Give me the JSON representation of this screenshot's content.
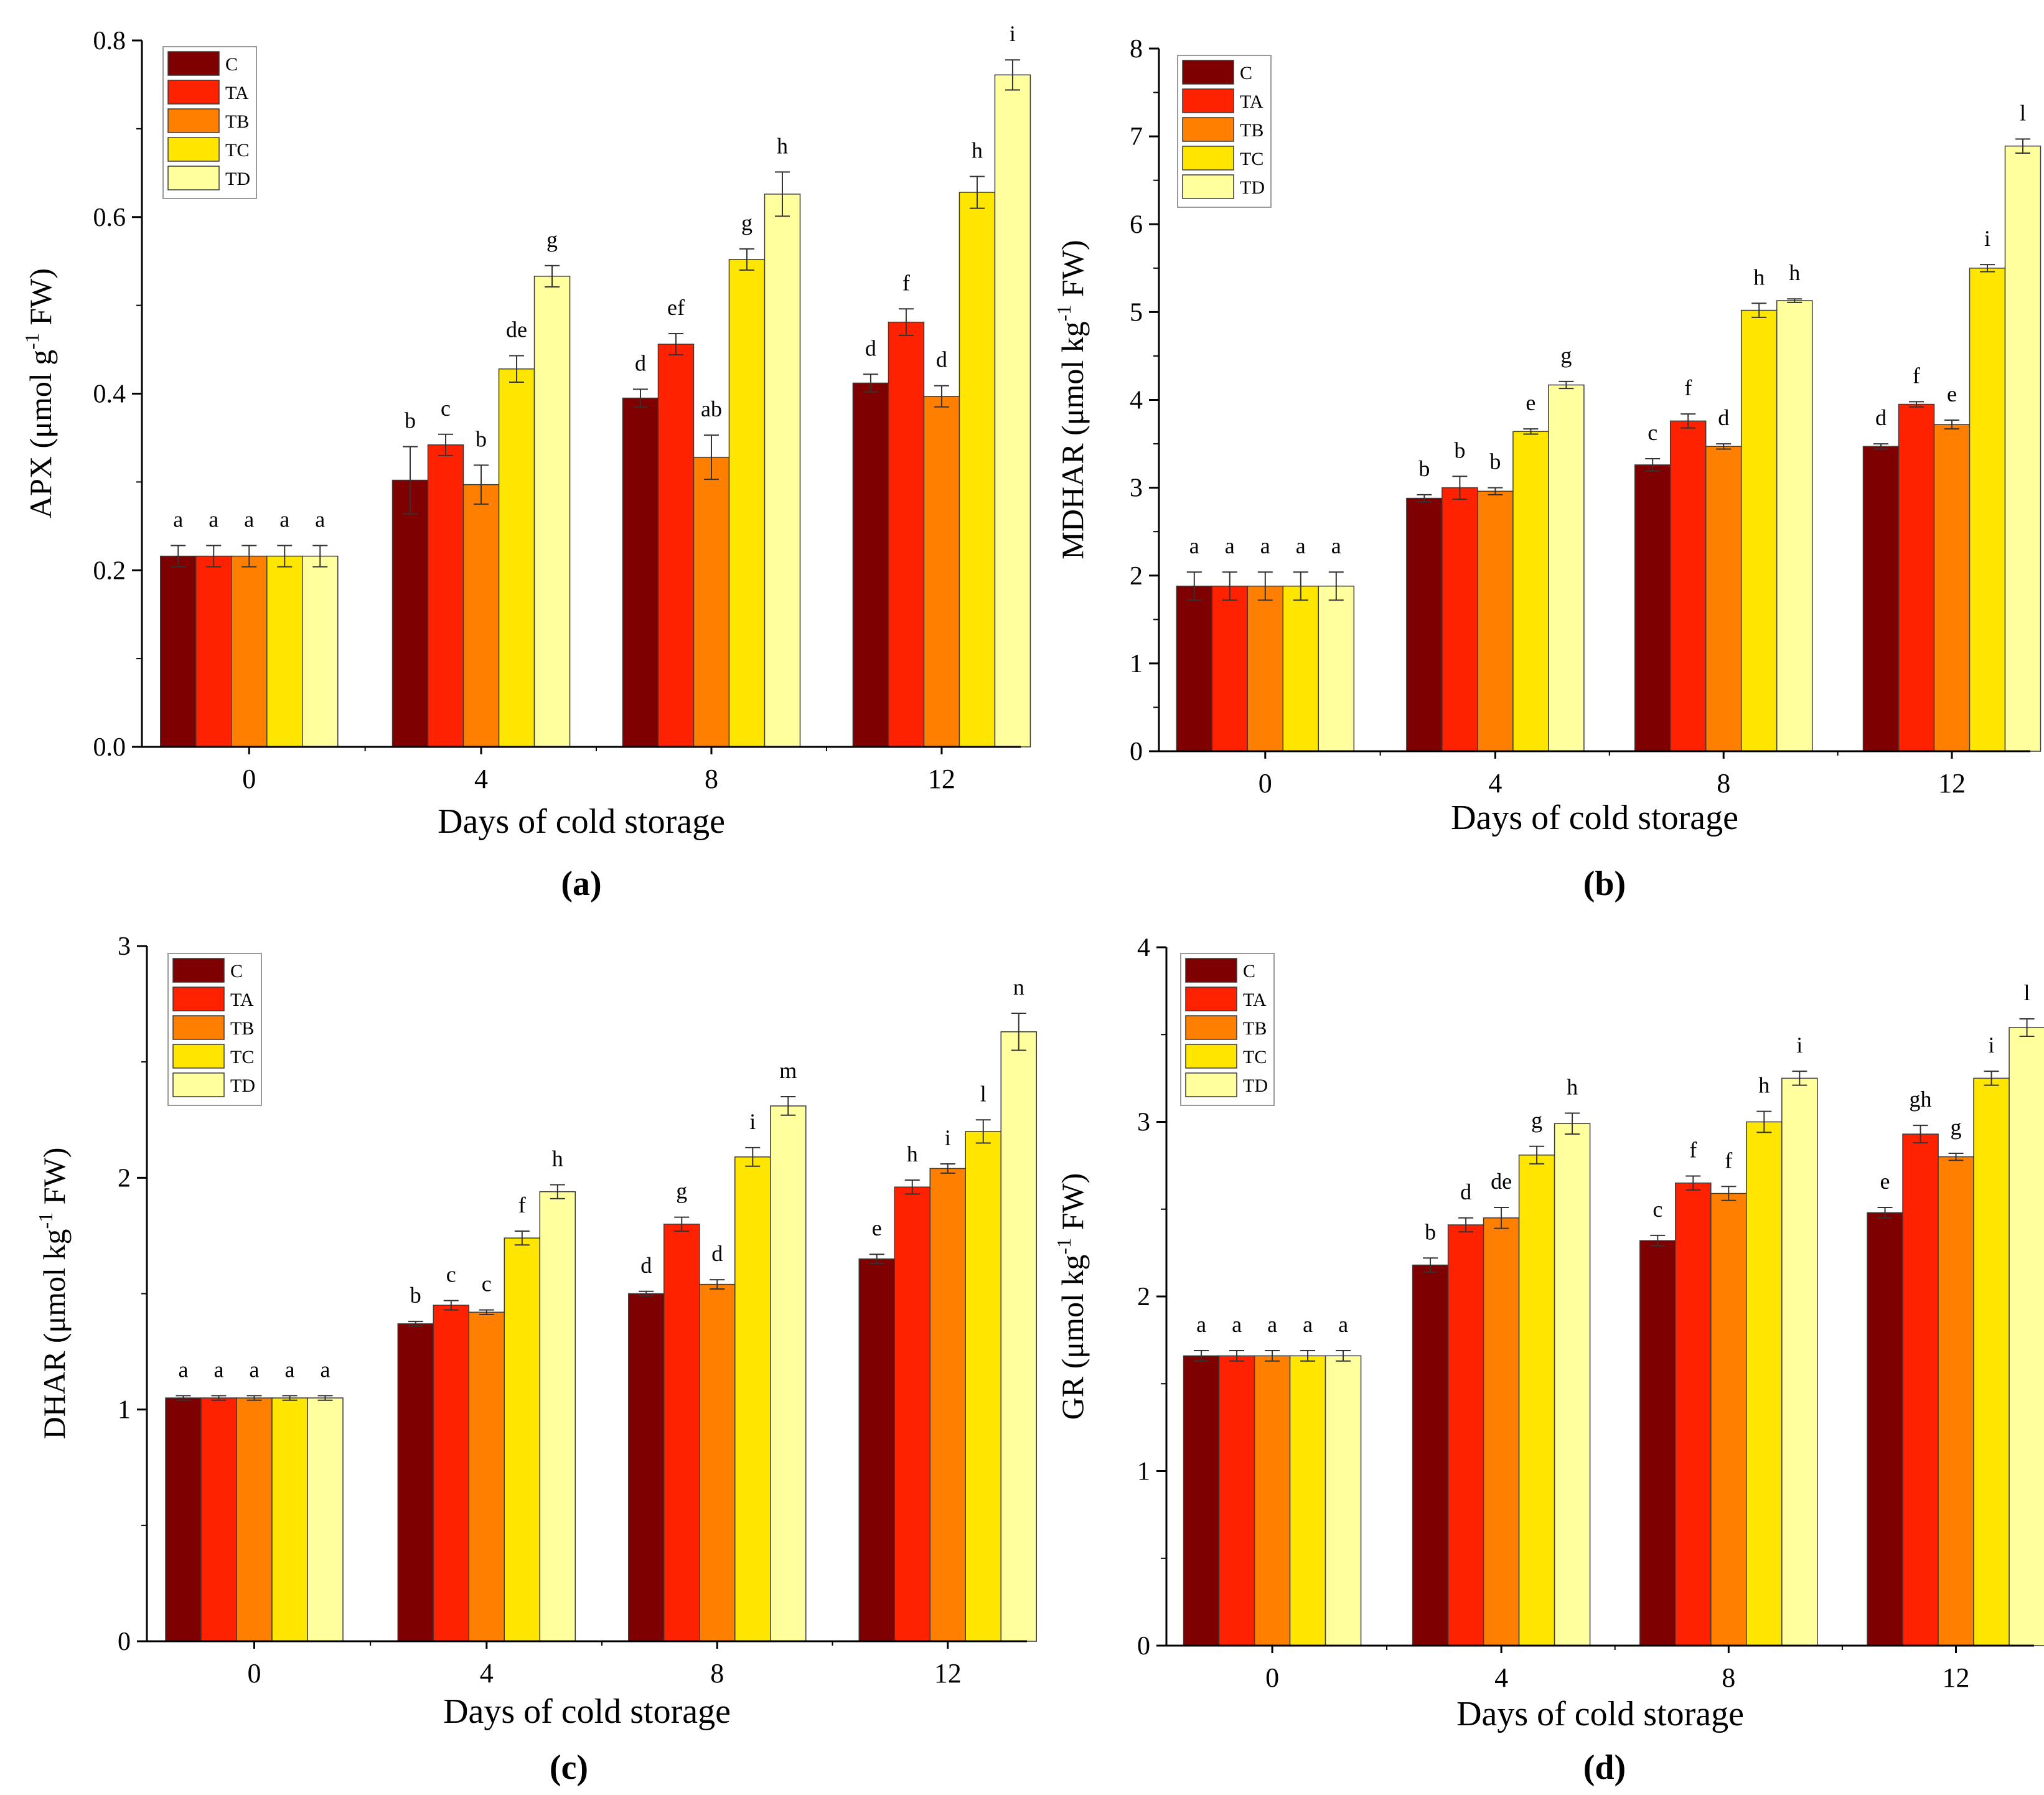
{
  "legend_labels": [
    "C",
    "TA",
    "TB",
    "TC",
    "TD"
  ],
  "colors": {
    "C": "#7f0000",
    "TA": "#ff2200",
    "TB": "#ff8000",
    "TC": "#ffe600",
    "TD": "#ffff9e",
    "stroke": "#3a3a3a"
  },
  "chart_data": [
    {
      "type": "bar",
      "panel": "(a)",
      "xlabel": "Days of cold storage",
      "ylabel_main": "APX (μmol g",
      "ylabel_sup": "-1",
      "ylabel_end": " FW)",
      "categories": [
        "0",
        "4",
        "8",
        "12"
      ],
      "ylim": [
        0,
        0.8
      ],
      "yticks": [
        0.0,
        0.2,
        0.4,
        0.6,
        0.8
      ],
      "ytick_labels": [
        "0.0",
        "0.2",
        "0.4",
        "0.6",
        "0.8"
      ],
      "series": [
        {
          "name": "C",
          "values": [
            0.216,
            0.302,
            0.395,
            0.412
          ],
          "errors": [
            0.012,
            0.038,
            0.01,
            0.01
          ],
          "letters": [
            "a",
            "b",
            "d",
            "d"
          ]
        },
        {
          "name": "TA",
          "values": [
            0.216,
            0.342,
            0.456,
            0.481
          ],
          "errors": [
            0.012,
            0.012,
            0.012,
            0.015
          ],
          "letters": [
            "a",
            "c",
            "ef",
            "f"
          ]
        },
        {
          "name": "TB",
          "values": [
            0.216,
            0.297,
            0.328,
            0.397
          ],
          "errors": [
            0.012,
            0.022,
            0.025,
            0.012
          ],
          "letters": [
            "a",
            "b",
            "ab",
            "d"
          ]
        },
        {
          "name": "TC",
          "values": [
            0.216,
            0.428,
            0.552,
            0.628
          ],
          "errors": [
            0.012,
            0.015,
            0.012,
            0.018
          ],
          "letters": [
            "a",
            "de",
            "g",
            "h"
          ]
        },
        {
          "name": "TD",
          "values": [
            0.216,
            0.533,
            0.626,
            0.761
          ],
          "errors": [
            0.012,
            0.012,
            0.025,
            0.017
          ],
          "letters": [
            "a",
            "g",
            "h",
            "i"
          ]
        }
      ]
    },
    {
      "type": "bar",
      "panel": "(b)",
      "xlabel": "Days of cold storage",
      "ylabel_main": "MDHAR (μmol kg",
      "ylabel_sup": "-1",
      "ylabel_end": " FW)",
      "categories": [
        "0",
        "4",
        "8",
        "12"
      ],
      "ylim": [
        0,
        8
      ],
      "yticks": [
        0,
        1,
        2,
        3,
        4,
        5,
        6,
        7,
        8
      ],
      "ytick_labels": [
        "0",
        "1",
        "2",
        "3",
        "4",
        "5",
        "6",
        "7",
        "8"
      ],
      "series": [
        {
          "name": "C",
          "values": [
            1.88,
            2.88,
            3.26,
            3.47
          ],
          "errors": [
            0.16,
            0.04,
            0.07,
            0.03
          ],
          "letters": [
            "a",
            "b",
            "c",
            "d"
          ]
        },
        {
          "name": "TA",
          "values": [
            1.88,
            3.0,
            3.76,
            3.95
          ],
          "errors": [
            0.16,
            0.13,
            0.08,
            0.03
          ],
          "letters": [
            "a",
            "b",
            "f",
            "f"
          ]
        },
        {
          "name": "TB",
          "values": [
            1.88,
            2.96,
            3.47,
            3.72
          ],
          "errors": [
            0.16,
            0.04,
            0.03,
            0.05
          ],
          "letters": [
            "a",
            "b",
            "d",
            "e"
          ]
        },
        {
          "name": "TC",
          "values": [
            1.88,
            3.64,
            5.02,
            5.5
          ],
          "errors": [
            0.16,
            0.03,
            0.08,
            0.04
          ],
          "letters": [
            "a",
            "e",
            "h",
            "i"
          ]
        },
        {
          "name": "TD",
          "values": [
            1.88,
            4.17,
            5.13,
            6.89
          ],
          "errors": [
            0.16,
            0.04,
            0.02,
            0.08
          ],
          "letters": [
            "a",
            "g",
            "h",
            "l"
          ]
        }
      ]
    },
    {
      "type": "bar",
      "panel": "(c)",
      "xlabel": "Days of cold storage",
      "ylabel_main": "DHAR (μmol kg",
      "ylabel_sup": "-1",
      "ylabel_end": " FW)",
      "categories": [
        "0",
        "4",
        "8",
        "12"
      ],
      "ylim": [
        0,
        3
      ],
      "yticks": [
        0,
        1,
        2,
        3
      ],
      "ytick_labels": [
        "0",
        "1",
        "2",
        "3"
      ],
      "series": [
        {
          "name": "C",
          "values": [
            1.05,
            1.37,
            1.5,
            1.65
          ],
          "errors": [
            0.01,
            0.01,
            0.01,
            0.02
          ],
          "letters": [
            "a",
            "b",
            "d",
            "e"
          ]
        },
        {
          "name": "TA",
          "values": [
            1.05,
            1.45,
            1.8,
            1.96
          ],
          "errors": [
            0.01,
            0.02,
            0.03,
            0.03
          ],
          "letters": [
            "a",
            "c",
            "g",
            "h"
          ]
        },
        {
          "name": "TB",
          "values": [
            1.05,
            1.42,
            1.54,
            2.04
          ],
          "errors": [
            0.01,
            0.01,
            0.02,
            0.02
          ],
          "letters": [
            "a",
            "c",
            "d",
            "i"
          ]
        },
        {
          "name": "TC",
          "values": [
            1.05,
            1.74,
            2.09,
            2.2
          ],
          "errors": [
            0.01,
            0.03,
            0.04,
            0.05
          ],
          "letters": [
            "a",
            "f",
            "i",
            "l"
          ]
        },
        {
          "name": "TD",
          "values": [
            1.05,
            1.94,
            2.31,
            2.63
          ],
          "errors": [
            0.01,
            0.03,
            0.04,
            0.08
          ],
          "letters": [
            "a",
            "h",
            "m",
            "n"
          ]
        }
      ]
    },
    {
      "type": "bar",
      "panel": "(d)",
      "xlabel": "Days of cold storage",
      "ylabel_main": "GR (μmol kg",
      "ylabel_sup": "-1",
      "ylabel_end": " FW)",
      "categories": [
        "0",
        "4",
        "8",
        "12"
      ],
      "ylim": [
        0,
        4
      ],
      "yticks": [
        0,
        1,
        2,
        3,
        4
      ],
      "ytick_labels": [
        "0",
        "1",
        "2",
        "3",
        "4"
      ],
      "series": [
        {
          "name": "C",
          "values": [
            1.66,
            2.18,
            2.32,
            2.48
          ],
          "errors": [
            0.03,
            0.04,
            0.03,
            0.03
          ],
          "letters": [
            "a",
            "b",
            "c",
            "e"
          ]
        },
        {
          "name": "TA",
          "values": [
            1.66,
            2.41,
            2.65,
            2.93
          ],
          "errors": [
            0.03,
            0.04,
            0.04,
            0.05
          ],
          "letters": [
            "a",
            "d",
            "f",
            "gh"
          ]
        },
        {
          "name": "TB",
          "values": [
            1.66,
            2.45,
            2.59,
            2.8
          ],
          "errors": [
            0.03,
            0.06,
            0.04,
            0.02
          ],
          "letters": [
            "a",
            "de",
            "f",
            "g"
          ]
        },
        {
          "name": "TC",
          "values": [
            1.66,
            2.81,
            3.0,
            3.25
          ],
          "errors": [
            0.03,
            0.05,
            0.06,
            0.04
          ],
          "letters": [
            "a",
            "g",
            "h",
            "i"
          ]
        },
        {
          "name": "TD",
          "values": [
            1.66,
            2.99,
            3.25,
            3.54
          ],
          "errors": [
            0.03,
            0.06,
            0.04,
            0.05
          ],
          "letters": [
            "a",
            "h",
            "i",
            "l"
          ]
        }
      ]
    }
  ]
}
